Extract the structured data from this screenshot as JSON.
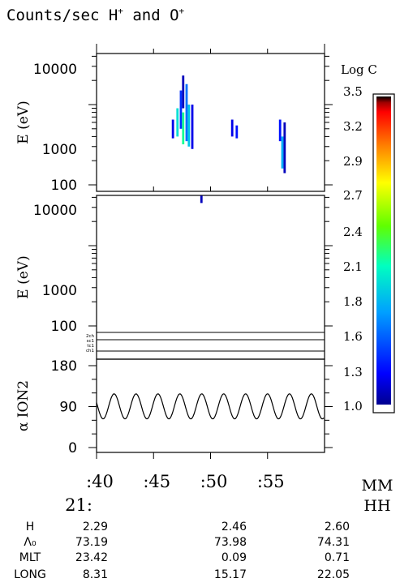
{
  "title": {
    "main": "Counts/sec H",
    "sup1": "+",
    "mid": " and O",
    "sup2": "+"
  },
  "chart_data": {
    "type": "heatmap",
    "panels": [
      {
        "id": "h-spectrogram",
        "ylabel": "E (eV)",
        "yscale": "log",
        "yticks": [
          "10000",
          "1000",
          "100"
        ],
        "blobs": [
          {
            "t": 46.7,
            "e1": 380,
            "e2": 650,
            "logc": 1.2
          },
          {
            "t": 47.1,
            "e1": 400,
            "e2": 900,
            "logc": 2.0
          },
          {
            "t": 47.4,
            "e1": 500,
            "e2": 1500,
            "logc": 1.4
          },
          {
            "t": 47.6,
            "e1": 900,
            "e2": 2300,
            "logc": 1.1
          },
          {
            "t": 47.6,
            "e1": 320,
            "e2": 800,
            "logc": 2.2
          },
          {
            "t": 47.9,
            "e1": 350,
            "e2": 1800,
            "logc": 1.6
          },
          {
            "t": 48.1,
            "e1": 300,
            "e2": 1000,
            "logc": 1.9
          },
          {
            "t": 48.4,
            "e1": 280,
            "e2": 1000,
            "logc": 1.2
          },
          {
            "t": 51.9,
            "e1": 400,
            "e2": 650,
            "logc": 1.2
          },
          {
            "t": 52.3,
            "e1": 380,
            "e2": 550,
            "logc": 1.3
          },
          {
            "t": 56.1,
            "e1": 350,
            "e2": 650,
            "logc": 1.3
          },
          {
            "t": 56.3,
            "e1": 160,
            "e2": 400,
            "logc": 1.8
          },
          {
            "t": 56.5,
            "e1": 140,
            "e2": 600,
            "logc": 1.1
          }
        ]
      },
      {
        "id": "o-spectrogram",
        "ylabel": "E (eV)",
        "yscale": "log",
        "yticks": [
          "10000",
          "1000",
          "100"
        ],
        "blobs": [
          {
            "t": 49.2,
            "e1": 3400,
            "e2": 4200,
            "logc": 1.1
          }
        ]
      },
      {
        "id": "pitch-angle",
        "ylabel": "α ION2",
        "yticks": [
          "180",
          "90",
          "0"
        ],
        "line": {
          "ymin": 63,
          "ymax": 118,
          "cycles": 10.4,
          "phase": 0.2
        }
      }
    ],
    "channel_labels": [
      "2ch",
      "sc1",
      "tc1",
      "ch1"
    ],
    "colorbar": {
      "label": "Log C",
      "min": 1.0,
      "max": 3.5,
      "ticks": [
        "3.5",
        "3.2",
        "2.9",
        "2.7",
        "2.4",
        "2.1",
        "1.8",
        "1.6",
        "1.3",
        "1.0"
      ]
    },
    "xaxis": {
      "ticks": [
        ":40",
        ":45",
        ":50",
        ":55"
      ],
      "hour": "21:",
      "unit_mm": "MM",
      "unit_hh": "HH",
      "tmin": 40,
      "tmax": 60
    }
  },
  "ephemeris": {
    "rows": [
      {
        "label": "H",
        "values": [
          "2.29",
          "2.46",
          "2.60"
        ]
      },
      {
        "label": "Λ₀",
        "values": [
          "73.19",
          "73.98",
          "74.31"
        ]
      },
      {
        "label": "MLT",
        "values": [
          "23.42",
          "0.09",
          "0.71"
        ]
      },
      {
        "label": "LONG",
        "values": [
          "8.31",
          "15.17",
          "22.05"
        ]
      }
    ]
  }
}
